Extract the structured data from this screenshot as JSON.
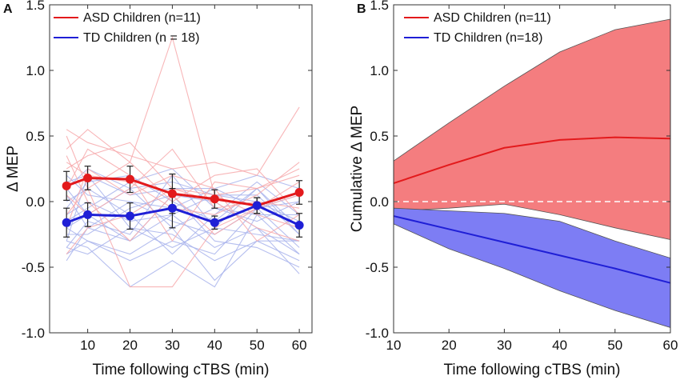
{
  "colors": {
    "asd": "#e31a1c",
    "td": "#1f1fd6",
    "asd_fill": "#f47d7f",
    "td_fill": "#7d7df4",
    "overlap_fill": "#7a3bd0",
    "asd_light": "#f7a9ab",
    "td_light": "#a9b4ec",
    "error_bar": "#222222"
  },
  "chart_data": [
    {
      "panel": "A",
      "type": "line",
      "xlabel": "Time following cTBS (min)",
      "ylabel": "Δ MEP",
      "xlim": [
        1,
        63
      ],
      "ylim": [
        -1.0,
        1.5
      ],
      "xticks": [
        "10",
        "20",
        "30",
        "40",
        "50",
        "60"
      ],
      "yticks": [
        "-1.0",
        "-0.5",
        "0.0",
        "0.5",
        "1.0",
        "1.5"
      ],
      "legend_position": "top-left",
      "x": [
        5,
        10,
        20,
        30,
        40,
        50,
        60
      ],
      "series": [
        {
          "name": "ASD Children (n=11)",
          "values": [
            0.12,
            0.18,
            0.17,
            0.06,
            0.02,
            -0.03,
            0.07
          ],
          "error": [
            0.11,
            0.09,
            0.1,
            0.15,
            0.07,
            0.06,
            0.09
          ]
        },
        {
          "name": "TD Children (n = 18)",
          "values": [
            -0.16,
            -0.1,
            -0.11,
            -0.05,
            -0.16,
            -0.03,
            -0.18
          ],
          "error": [
            0.11,
            0.09,
            0.1,
            0.15,
            0.05,
            0.06,
            0.09
          ]
        }
      ],
      "individual_asd": [
        [
          0.55,
          0.45,
          0.35,
          0.25,
          0.3,
          0.2,
          0.72
        ],
        [
          0.4,
          0.55,
          0.3,
          1.25,
          0.05,
          -0.1,
          -0.2
        ],
        [
          0.3,
          0.2,
          0.15,
          -0.05,
          -0.1,
          0.05,
          0.3
        ],
        [
          -0.1,
          0.1,
          -0.65,
          -0.65,
          -0.2,
          -0.05,
          0.15
        ],
        [
          0.5,
          0.1,
          0.3,
          0.0,
          0.2,
          0.25,
          -0.1
        ],
        [
          -0.4,
          -0.2,
          -0.1,
          0.1,
          0.0,
          -0.2,
          -0.3
        ],
        [
          0.1,
          0.4,
          0.2,
          -0.3,
          0.15,
          0.1,
          0.25
        ],
        [
          0.35,
          0.0,
          -0.3,
          0.05,
          -0.25,
          -0.05,
          0.05
        ],
        [
          -0.2,
          0.25,
          0.05,
          0.2,
          0.1,
          -0.3,
          -0.1
        ],
        [
          0.25,
          0.35,
          0.45,
          0.1,
          0.05,
          0.1,
          0.2
        ],
        [
          0.05,
          -0.1,
          0.1,
          0.4,
          -0.05,
          0.0,
          -0.05
        ]
      ],
      "individual_td": [
        [
          -0.45,
          -0.2,
          -0.3,
          -0.1,
          -0.35,
          -0.2,
          -0.55
        ],
        [
          -0.3,
          -0.35,
          -0.65,
          -0.45,
          -0.65,
          -0.1,
          -0.4
        ],
        [
          0.0,
          0.1,
          -0.1,
          -0.4,
          -0.1,
          0.15,
          -0.1
        ],
        [
          -0.2,
          -0.3,
          -0.4,
          -0.2,
          -0.6,
          -0.3,
          -0.45
        ],
        [
          0.15,
          0.2,
          0.05,
          0.1,
          0.1,
          -0.05,
          0.05
        ],
        [
          -0.35,
          -0.15,
          -0.25,
          0.2,
          -0.2,
          -0.25,
          -0.3
        ],
        [
          -0.1,
          0.0,
          -0.15,
          -0.1,
          0.05,
          0.05,
          -0.25
        ],
        [
          0.1,
          -0.1,
          0.1,
          -0.2,
          -0.05,
          -0.15,
          0.0
        ],
        [
          -0.25,
          -0.25,
          -0.05,
          0.05,
          -0.3,
          -0.35,
          -0.5
        ],
        [
          -0.05,
          0.15,
          0.2,
          0.0,
          -0.15,
          0.1,
          -0.2
        ],
        [
          -0.4,
          -0.3,
          -0.45,
          -0.3,
          -0.4,
          -0.05,
          -0.35
        ],
        [
          0.2,
          0.05,
          0.0,
          -0.05,
          0.1,
          0.2,
          0.1
        ],
        [
          -0.15,
          -0.05,
          0.15,
          0.25,
          -0.05,
          -0.1,
          -0.1
        ],
        [
          -0.3,
          0.2,
          -0.2,
          -0.35,
          -0.2,
          0.1,
          -0.25
        ],
        [
          0.05,
          -0.2,
          0.0,
          -0.15,
          -0.25,
          -0.05,
          0.0
        ],
        [
          -0.2,
          -0.1,
          -0.3,
          0.05,
          0.0,
          -0.2,
          -0.4
        ],
        [
          0.1,
          0.25,
          0.1,
          0.15,
          0.05,
          0.0,
          -0.15
        ],
        [
          -0.35,
          -0.4,
          -0.2,
          -0.25,
          -0.45,
          -0.3,
          -0.3
        ]
      ]
    },
    {
      "panel": "B",
      "type": "area",
      "xlabel": "Time following cTBS (min)",
      "ylabel": "Cumulative Δ MEP",
      "xlim": [
        10,
        60
      ],
      "ylim": [
        -1.0,
        1.5
      ],
      "xticks": [
        "10",
        "20",
        "30",
        "40",
        "50",
        "60"
      ],
      "yticks": [
        "-1.0",
        "-0.5",
        "0.0",
        "0.5",
        "1.0",
        "1.5"
      ],
      "legend_position": "top-left",
      "x": [
        10,
        20,
        30,
        40,
        50,
        60
      ],
      "reference_line_y": 0.0,
      "series": [
        {
          "name": "ASD Children (n=11)",
          "mean": [
            0.14,
            0.28,
            0.41,
            0.47,
            0.49,
            0.48
          ],
          "upper": [
            0.31,
            0.6,
            0.88,
            1.14,
            1.31,
            1.39
          ],
          "lower": [
            -0.07,
            -0.05,
            -0.02,
            -0.1,
            -0.2,
            -0.29
          ]
        },
        {
          "name": "TD Children (n=18)",
          "mean": [
            -0.11,
            -0.21,
            -0.31,
            -0.41,
            -0.51,
            -0.62
          ],
          "upper": [
            -0.05,
            -0.07,
            -0.09,
            -0.15,
            -0.3,
            -0.43
          ],
          "lower": [
            -0.17,
            -0.36,
            -0.51,
            -0.68,
            -0.83,
            -0.96
          ]
        }
      ]
    }
  ]
}
